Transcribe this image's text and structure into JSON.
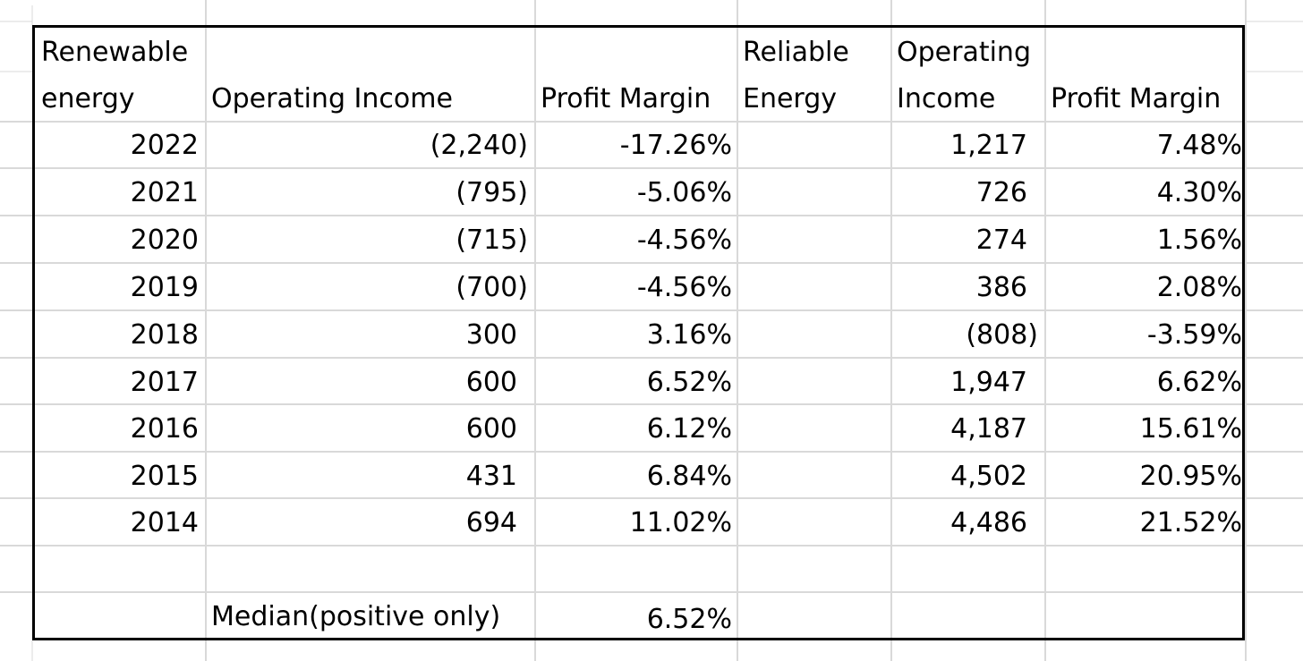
{
  "headers": {
    "renewable_line1": "Renewable",
    "renewable_line2": "energy",
    "op_income": "Operating Income",
    "profit_margin": "Profit Margin",
    "reliable_line1": "Reliable",
    "reliable_line2": "Energy",
    "op_income2_line1": "Operating",
    "op_income2_line2": "Income",
    "profit_margin2": "Profit Margin"
  },
  "rows": [
    {
      "year": "2022",
      "op_income": "(2,240)",
      "margin": "-17.26%",
      "rel_op_income": "1,217",
      "rel_margin": "7.48%"
    },
    {
      "year": "2021",
      "op_income": "(795)",
      "margin": "-5.06%",
      "rel_op_income": "726",
      "rel_margin": "4.30%"
    },
    {
      "year": "2020",
      "op_income": "(715)",
      "margin": "-4.56%",
      "rel_op_income": "274",
      "rel_margin": "1.56%"
    },
    {
      "year": "2019",
      "op_income": "(700)",
      "margin": "-4.56%",
      "rel_op_income": "386",
      "rel_margin": "2.08%"
    },
    {
      "year": "2018",
      "op_income": "300",
      "margin": "3.16%",
      "rel_op_income": "(808)",
      "rel_margin": "-3.59%"
    },
    {
      "year": "2017",
      "op_income": "600",
      "margin": "6.52%",
      "rel_op_income": "1,947",
      "rel_margin": "6.62%"
    },
    {
      "year": "2016",
      "op_income": "600",
      "margin": "6.12%",
      "rel_op_income": "4,187",
      "rel_margin": "15.61%"
    },
    {
      "year": "2015",
      "op_income": "431",
      "margin": "6.84%",
      "rel_op_income": "4,502",
      "rel_margin": "20.95%"
    },
    {
      "year": "2014",
      "op_income": "694",
      "margin": "11.02%",
      "rel_op_income": "4,486",
      "rel_margin": "21.52%"
    }
  ],
  "footer": {
    "median_label": "Median(positive only)",
    "median_value": "6.52%"
  },
  "colors": {
    "gridline": "#d9d9d9",
    "border": "#000000",
    "background": "#ffffff"
  }
}
